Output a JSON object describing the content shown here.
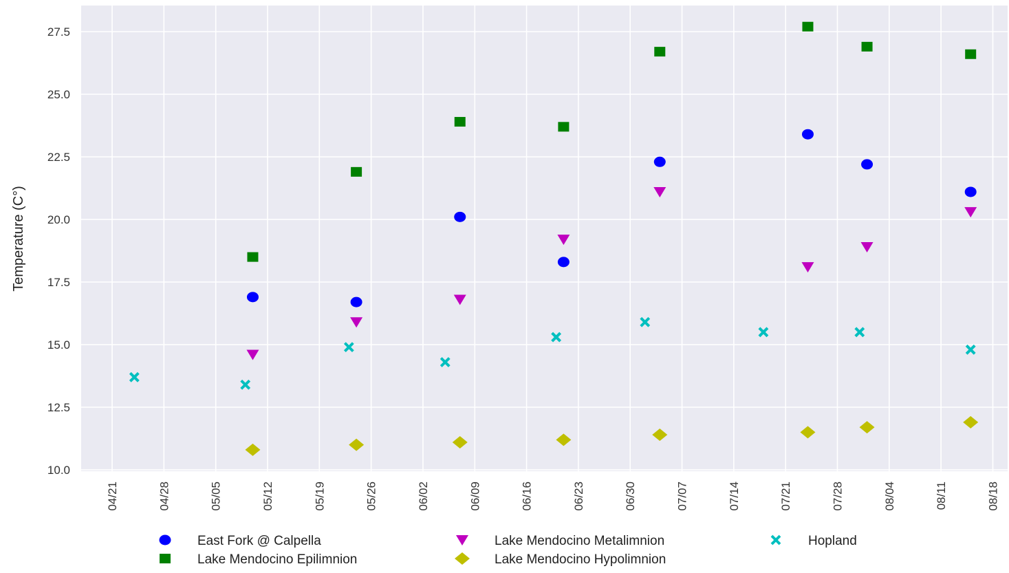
{
  "chart_data": {
    "type": "scatter",
    "title": "",
    "xlabel": "",
    "ylabel": "Temperature (C°)",
    "year": 2018,
    "xlim": [
      "2018-04-17",
      "2018-08-20"
    ],
    "ylim": [
      10.0,
      28.0
    ],
    "x_tick_labels": [
      "04/21",
      "04/28",
      "05/05",
      "05/12",
      "05/19",
      "05/26",
      "06/02",
      "06/09",
      "06/16",
      "06/23",
      "06/30",
      "07/07",
      "07/14",
      "07/21",
      "07/28",
      "08/04",
      "08/11",
      "08/18"
    ],
    "y_tick_labels": [
      "10.0",
      "12.5",
      "15.0",
      "17.5",
      "20.0",
      "22.5",
      "25.0",
      "27.5"
    ],
    "grid": true,
    "background": "#eaeaf2",
    "legend_position": "bottom",
    "series": [
      {
        "name": "East Fork @ Calpella",
        "marker": "circle",
        "color": "#0000ff",
        "points": [
          [
            "2018-05-10",
            16.9
          ],
          [
            "2018-05-24",
            16.7
          ],
          [
            "2018-06-07",
            20.1
          ],
          [
            "2018-06-21",
            18.3
          ],
          [
            "2018-07-04",
            22.3
          ],
          [
            "2018-07-24",
            23.4
          ],
          [
            "2018-08-01",
            22.2
          ],
          [
            "2018-08-15",
            21.1
          ]
        ]
      },
      {
        "name": "Lake Mendocino Metalimnion",
        "marker": "triangle-down",
        "color": "#bf00bf",
        "points": [
          [
            "2018-05-10",
            14.6
          ],
          [
            "2018-05-24",
            15.9
          ],
          [
            "2018-06-07",
            16.8
          ],
          [
            "2018-06-21",
            19.2
          ],
          [
            "2018-07-04",
            21.1
          ],
          [
            "2018-07-24",
            18.1
          ],
          [
            "2018-08-01",
            18.9
          ],
          [
            "2018-08-15",
            20.3
          ]
        ]
      },
      {
        "name": "Hopland",
        "marker": "x-cross",
        "color": "#00bfbf",
        "points": [
          [
            "2018-04-24",
            13.7
          ],
          [
            "2018-05-09",
            13.4
          ],
          [
            "2018-05-23",
            14.9
          ],
          [
            "2018-06-05",
            14.3
          ],
          [
            "2018-06-20",
            15.3
          ],
          [
            "2018-07-02",
            15.9
          ],
          [
            "2018-07-18",
            15.5
          ],
          [
            "2018-07-31",
            15.5
          ],
          [
            "2018-08-15",
            14.8
          ]
        ]
      },
      {
        "name": "Lake Mendocino Epilimnion",
        "marker": "square",
        "color": "#008000",
        "points": [
          [
            "2018-05-10",
            18.5
          ],
          [
            "2018-05-24",
            21.9
          ],
          [
            "2018-06-07",
            23.9
          ],
          [
            "2018-06-21",
            23.7
          ],
          [
            "2018-07-04",
            26.7
          ],
          [
            "2018-07-24",
            27.7
          ],
          [
            "2018-08-01",
            26.9
          ],
          [
            "2018-08-15",
            26.6
          ]
        ]
      },
      {
        "name": "Lake Mendocino Hypolimnion",
        "marker": "diamond",
        "color": "#bfbf00",
        "points": [
          [
            "2018-05-10",
            10.8
          ],
          [
            "2018-05-24",
            11.0
          ],
          [
            "2018-06-07",
            11.1
          ],
          [
            "2018-06-21",
            11.2
          ],
          [
            "2018-07-04",
            11.4
          ],
          [
            "2018-07-24",
            11.5
          ],
          [
            "2018-08-01",
            11.7
          ],
          [
            "2018-08-15",
            11.9
          ]
        ]
      }
    ]
  }
}
